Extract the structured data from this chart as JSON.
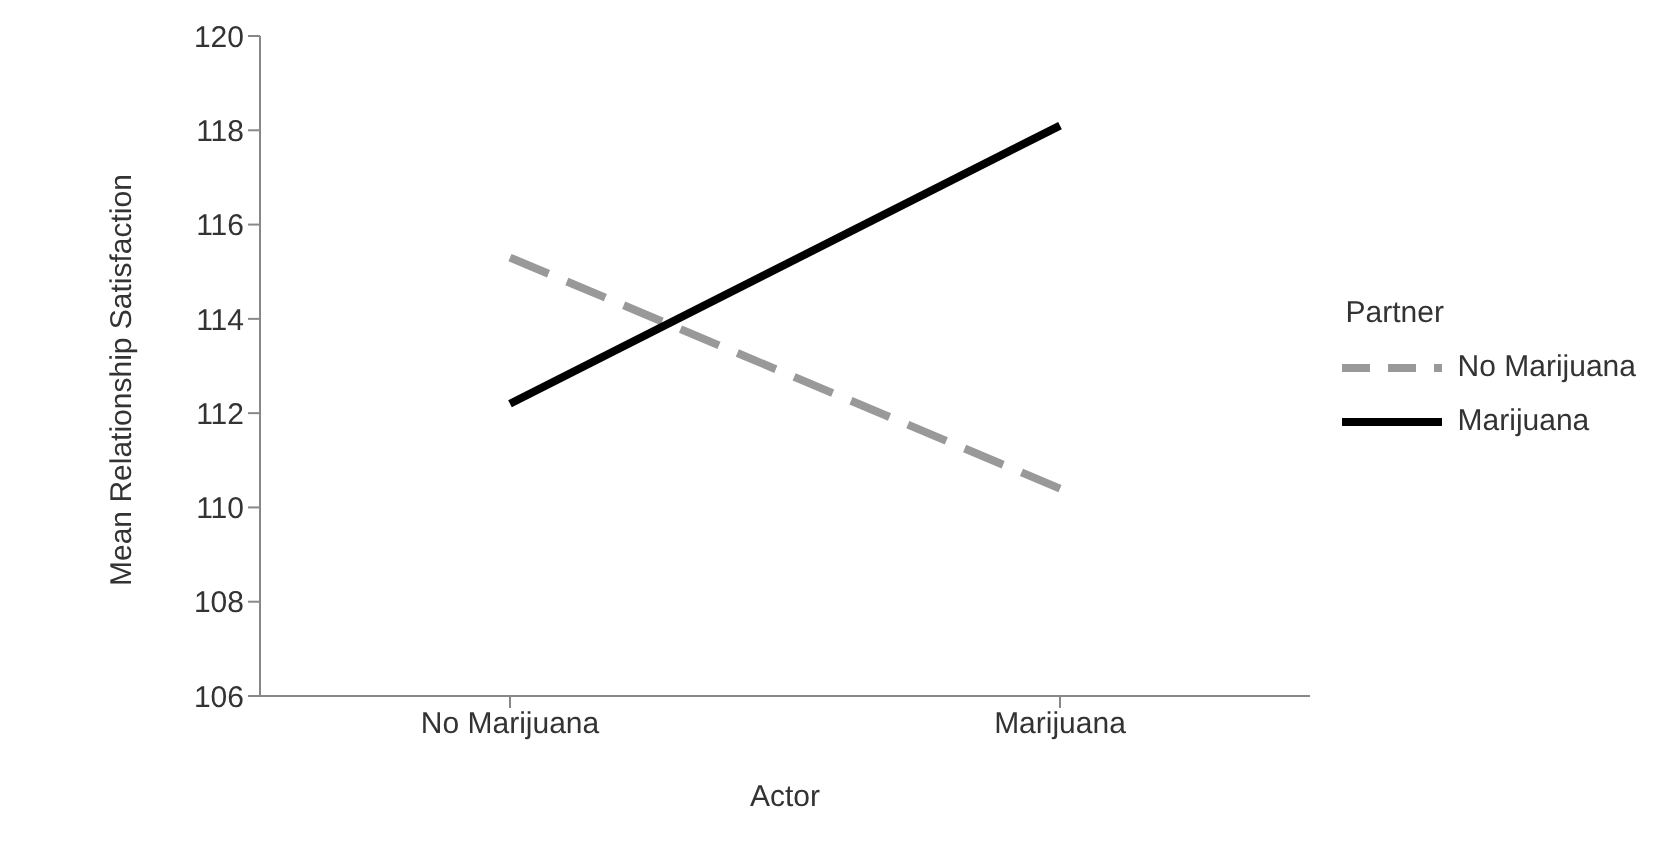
{
  "chart_data": {
    "type": "line",
    "xlabel": "Actor",
    "ylabel": "Mean Relationship Satisfaction",
    "legend_title": "Partner",
    "legend": "right",
    "grid": false,
    "marker": "none",
    "categories": [
      "No Marijuana",
      "Marijuana"
    ],
    "ylim": [
      106,
      120
    ],
    "yticks": [
      106,
      108,
      110,
      112,
      114,
      116,
      118,
      120
    ],
    "series": [
      {
        "name": "No Marijuana",
        "color": "#999999",
        "line_style": "dashed",
        "values": [
          115.3,
          110.4
        ]
      },
      {
        "name": "Marijuana",
        "color": "#000000",
        "line_style": "solid",
        "values": [
          112.2,
          118.1
        ]
      }
    ]
  }
}
